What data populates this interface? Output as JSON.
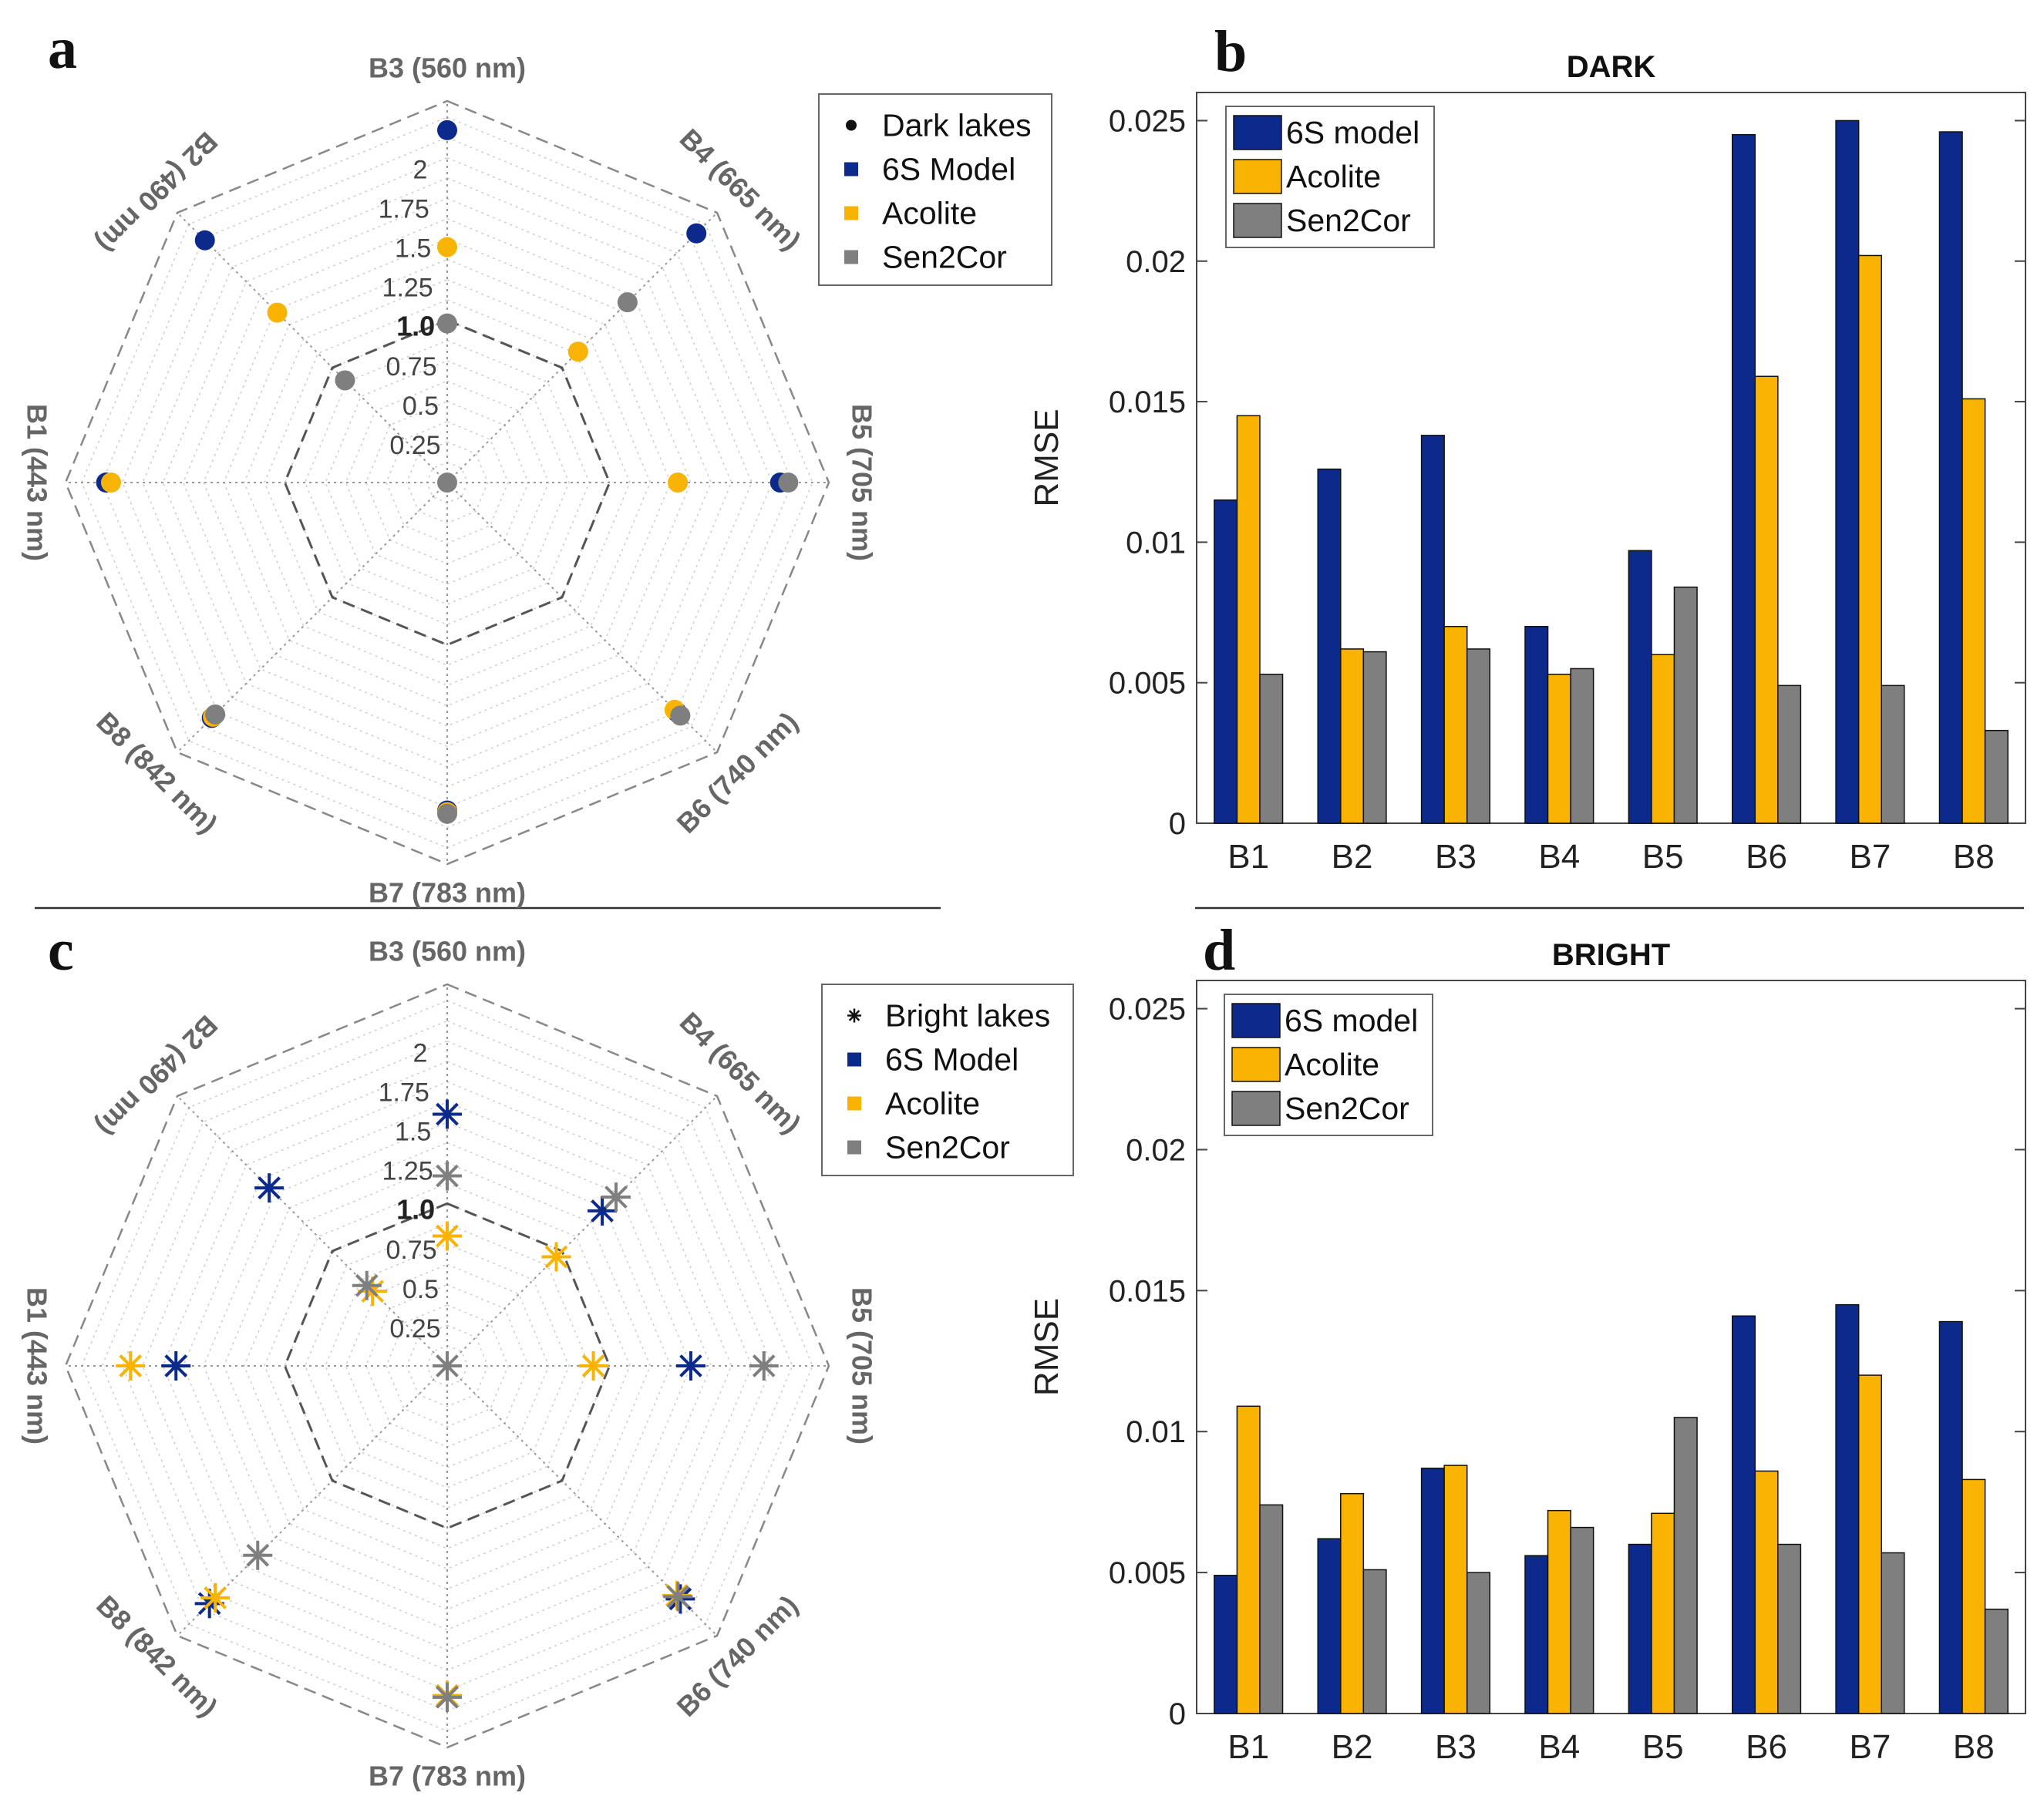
{
  "colors": {
    "sixs": "#0c2a8c",
    "acolite": "#f9b302",
    "sen2cor": "#7f7f7f",
    "marker_black": "#111111"
  },
  "chart_data": [
    {
      "id": "a",
      "type": "radar",
      "panel_label": "a",
      "axes": [
        "B3 (560 nm)",
        "B4 (665 nm)",
        "B5 (705 nm)",
        "B6 (740 nm)",
        "B7 (783 nm)",
        "B8 (842 nm)",
        "B1 (443 nm)",
        "B2 (490 nm)"
      ],
      "ring_labels": [
        "0.25",
        "0.5",
        "0.75",
        "1.0",
        "1.25",
        "1.5",
        "1.75",
        "2"
      ],
      "range": [
        0,
        2.35
      ],
      "marker": "dot",
      "legend": [
        "Dark lakes",
        "6S Model",
        "Acolite",
        "Sen2Cor"
      ],
      "series": [
        {
          "name": "6S Model",
          "color_key": "sixs",
          "values": [
            2.17,
            2.17,
            2.05,
            2.0,
            2.02,
            2.05,
            2.1,
            2.11
          ]
        },
        {
          "name": "Acolite",
          "color_key": "acolite",
          "values": [
            1.45,
            1.14,
            1.42,
            1.98,
            2.03,
            2.04,
            2.07,
            1.48
          ]
        },
        {
          "name": "Sen2Cor",
          "color_key": "sen2cor",
          "values": [
            0.98,
            1.57,
            2.1,
            2.03,
            2.04,
            2.02,
            0.0,
            0.89
          ]
        }
      ]
    },
    {
      "id": "b",
      "type": "bar",
      "panel_label": "b",
      "title": "DARK",
      "ylabel": "RMSE",
      "categories": [
        "B1",
        "B2",
        "B3",
        "B4",
        "B5",
        "B6",
        "B7",
        "B8"
      ],
      "ylim": [
        0,
        0.026
      ],
      "yticks": [
        "0",
        "0.005",
        "0.01",
        "0.015",
        "0.02",
        "0.025"
      ],
      "legend": [
        "6S model",
        "Acolite",
        "Sen2Cor"
      ],
      "series": [
        {
          "name": "6S model",
          "color_key": "sixs",
          "values": [
            0.0115,
            0.0126,
            0.0138,
            0.007,
            0.0097,
            0.0245,
            0.025,
            0.0246
          ]
        },
        {
          "name": "Acolite",
          "color_key": "acolite",
          "values": [
            0.0145,
            0.0062,
            0.007,
            0.0053,
            0.006,
            0.0159,
            0.0202,
            0.0151
          ]
        },
        {
          "name": "Sen2Cor",
          "color_key": "sen2cor",
          "values": [
            0.0053,
            0.0061,
            0.0062,
            0.0055,
            0.0084,
            0.0049,
            0.0049,
            0.0033
          ]
        }
      ]
    },
    {
      "id": "c",
      "type": "radar",
      "panel_label": "c",
      "axes": [
        "B3 (560 nm)",
        "B4 (665 nm)",
        "B5 (705 nm)",
        "B6 (740 nm)",
        "B7 (783 nm)",
        "B8 (842 nm)",
        "B1 (443 nm)",
        "B2 (490 nm)"
      ],
      "ring_labels": [
        "0.25",
        "0.5",
        "0.75",
        "1.0",
        "1.25",
        "1.5",
        "1.75",
        "2"
      ],
      "range": [
        0,
        2.35
      ],
      "marker": "asterisk",
      "legend": [
        "Bright lakes",
        "6S Model",
        "Acolite",
        "Sen2Cor"
      ],
      "series": [
        {
          "name": "6S Model",
          "color_key": "sixs",
          "values": [
            1.55,
            1.35,
            1.5,
            2.03,
            2.04,
            2.07,
            1.67,
            1.55
          ]
        },
        {
          "name": "Acolite",
          "color_key": "acolite",
          "values": [
            0.8,
            0.95,
            0.9,
            2.0,
            2.03,
            2.02,
            1.95,
            0.65
          ]
        },
        {
          "name": "Sen2Cor",
          "color_key": "sen2cor",
          "values": [
            1.17,
            1.47,
            1.95,
            2.01,
            2.04,
            1.65,
            0.0,
            0.7
          ]
        }
      ]
    },
    {
      "id": "d",
      "type": "bar",
      "panel_label": "d",
      "title": "BRIGHT",
      "ylabel": "RMSE",
      "categories": [
        "B1",
        "B2",
        "B3",
        "B4",
        "B5",
        "B6",
        "B7",
        "B8"
      ],
      "ylim": [
        0,
        0.026
      ],
      "yticks": [
        "0",
        "0.005",
        "0.01",
        "0.015",
        "0.02",
        "0.025"
      ],
      "legend": [
        "6S model",
        "Acolite",
        "Sen2Cor"
      ],
      "series": [
        {
          "name": "6S model",
          "color_key": "sixs",
          "values": [
            0.0049,
            0.0062,
            0.0087,
            0.0056,
            0.006,
            0.0141,
            0.0145,
            0.0139
          ]
        },
        {
          "name": "Acolite",
          "color_key": "acolite",
          "values": [
            0.0109,
            0.0078,
            0.0088,
            0.0072,
            0.0071,
            0.0086,
            0.012,
            0.0083
          ]
        },
        {
          "name": "Sen2Cor",
          "color_key": "sen2cor",
          "values": [
            0.0074,
            0.0051,
            0.005,
            0.0066,
            0.0105,
            0.006,
            0.0057,
            0.0037
          ]
        }
      ]
    }
  ]
}
